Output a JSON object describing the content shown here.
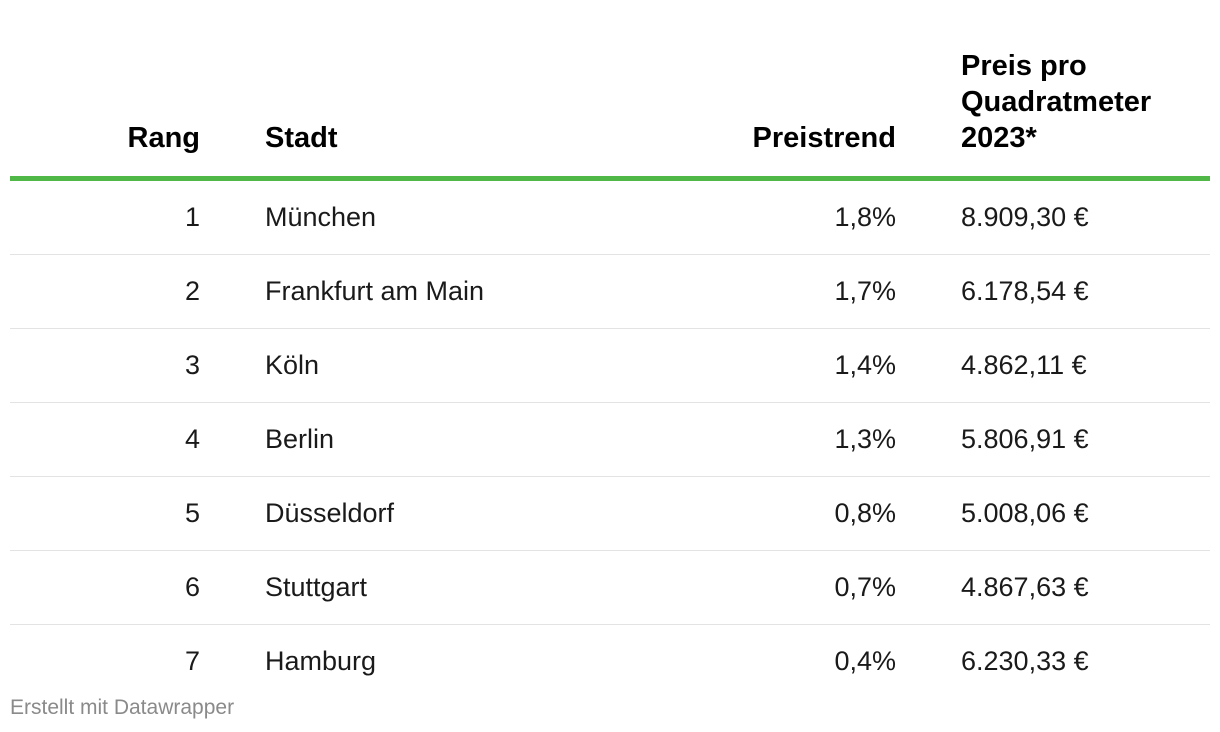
{
  "chart_data": {
    "type": "table",
    "columns": [
      "Rang",
      "Stadt",
      "Preistrend",
      "Preis pro Quadratmeter 2023*"
    ],
    "header": {
      "rank": "Rang",
      "city": "Stadt",
      "trend": "Preistrend",
      "price_line1": "Preis pro",
      "price_line2": "Quadratmeter 2023*"
    },
    "rows": [
      {
        "rank": "1",
        "city": "München",
        "trend": "1,8%",
        "price": "8.909,30 €"
      },
      {
        "rank": "2",
        "city": "Frankfurt am Main",
        "trend": "1,7%",
        "price": "6.178,54 €"
      },
      {
        "rank": "3",
        "city": "Köln",
        "trend": "1,4%",
        "price": "4.862,11 €"
      },
      {
        "rank": "4",
        "city": "Berlin",
        "trend": "1,3%",
        "price": "5.806,91 €"
      },
      {
        "rank": "5",
        "city": "Düsseldorf",
        "trend": "0,8%",
        "price": "5.008,06 €"
      },
      {
        "rank": "6",
        "city": "Stuttgart",
        "trend": "0,7%",
        "price": "4.867,63 €"
      },
      {
        "rank": "7",
        "city": "Hamburg",
        "trend": "0,4%",
        "price": "6.230,33 €"
      }
    ]
  },
  "colors": {
    "header_rule": "#4fb847",
    "row_divider": "#e3e3e3",
    "footer_text": "#8a8a8a"
  },
  "footer": {
    "credit": "Erstellt mit Datawrapper"
  }
}
